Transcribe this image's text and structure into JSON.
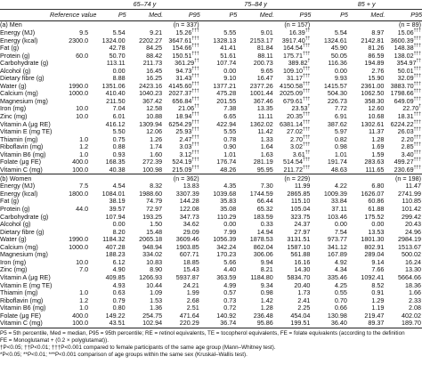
{
  "headers": {
    "groups": [
      "65–74 y",
      "75–84 y",
      "85 + y"
    ],
    "reference": "Reference value",
    "stats": [
      "P5",
      "Med.",
      "P95"
    ]
  },
  "sections": [
    {
      "title": "(a) Men",
      "n": [
        "(n = 337)",
        "(n = 157)",
        "(n = 89)"
      ],
      "rows": [
        {
          "label": "Energy (MJ)",
          "ref": "9.5",
          "v": [
            "5.54",
            "9.21",
            "15.26",
            "5.55",
            "9.01",
            "16.39",
            "5.54",
            "8.97",
            "15.06"
          ],
          "s": [
            "",
            "",
            "†††",
            "",
            "",
            "††",
            "",
            "",
            "†††"
          ]
        },
        {
          "label": "Energy (kcal)",
          "ref": "2300.0",
          "v": [
            "1324.00",
            "2202.27",
            "3647.61",
            "1328.13",
            "2153.17",
            "3917.40",
            "1324.61",
            "2142.81",
            "3600.39"
          ],
          "s": [
            "",
            "",
            "†††",
            "",
            "",
            "††",
            "",
            "",
            "†††"
          ]
        },
        {
          "label": "Fat (g)",
          "ref": "",
          "v": [
            "42.78",
            "84.25",
            "154.66",
            "41.41",
            "81.84",
            "164.54",
            "45.90",
            "81.26",
            "148.38"
          ],
          "s": [
            "",
            "",
            "†††",
            "",
            "",
            "†††",
            "",
            "",
            "†††"
          ]
        },
        {
          "label": "Protein (g)",
          "ref": "60.0",
          "v": [
            "50.70",
            "88.42",
            "150.51",
            "51.61",
            "88.11",
            "175.71",
            "50.05",
            "86.59",
            "138.02"
          ],
          "s": [
            "",
            "",
            "†††",
            "",
            "",
            "†††",
            "",
            "",
            "†††"
          ]
        },
        {
          "label": "Carbohydrate (g)",
          "ref": "",
          "v": [
            "113.11",
            "211.73",
            "361.29",
            "107.74",
            "200.73",
            "389.82",
            "116.36",
            "194.89",
            "354.97"
          ],
          "s": [
            "",
            "",
            "††",
            "",
            "",
            "†",
            "",
            "",
            "††"
          ]
        },
        {
          "label": "Alcohol (g)",
          "ref": "",
          "v": [
            "0.00",
            "16.45",
            "94.73",
            "0.00",
            "9.65",
            "109.10",
            "0.00",
            "2.76",
            "50.01"
          ],
          "s": [
            "",
            "",
            "†††",
            "",
            "",
            "†††",
            "",
            "",
            "†††"
          ]
        },
        {
          "label": "Dietary fibre (g)",
          "ref": "",
          "v": [
            "8.88",
            "16.25",
            "31.43",
            "9.10",
            "16.47",
            "31.17",
            "9.93",
            "15.90",
            "32.09"
          ],
          "s": [
            "",
            "",
            "†††",
            "",
            "",
            "†††",
            "",
            "",
            "†††"
          ]
        },
        {
          "label": "Water (g)",
          "ref": "1990.0",
          "v": [
            "1351.06",
            "2423.16",
            "4145.60",
            "1377.21",
            "2377.26",
            "4150.58",
            "1415.57",
            "2361.00",
            "3883.70"
          ],
          "s": [
            "",
            "",
            "†††",
            "",
            "",
            "†††",
            "",
            "",
            "†††"
          ]
        },
        {
          "label": "Calcium (mg)",
          "ref": "1000.0",
          "v": [
            "410.40",
            "1040.23",
            "2027.37",
            "475.28",
            "1001.44",
            "2025.09",
            "504.30",
            "1062.50",
            "1798.66"
          ],
          "s": [
            "",
            "",
            "†††",
            "",
            "",
            "†††",
            "",
            "",
            "†††"
          ]
        },
        {
          "label": "Magnesium (mg)",
          "ref": "",
          "v": [
            "211.50",
            "367.42",
            "656.84",
            "201.55",
            "367.46",
            "679.61",
            "226.73",
            "358.30",
            "649.09"
          ],
          "s": [
            "",
            "",
            "†††",
            "",
            "",
            "†††",
            "",
            "",
            "†††"
          ]
        },
        {
          "label": "Iron (mg)",
          "ref": "10.0",
          "v": [
            "7.04",
            "12.58",
            "21.06",
            "7.38",
            "13.35",
            "23.53",
            "7.72",
            "12.60",
            "22.70"
          ],
          "s": [
            "",
            "",
            "††",
            "",
            "",
            "†",
            "",
            "",
            "†"
          ]
        },
        {
          "label": "Zinc (mg)",
          "ref": "10.0",
          "v": [
            "6.01",
            "10.88",
            "18.94",
            "6.65",
            "11.11",
            "20.35",
            "6.91",
            "10.68",
            "18.31"
          ],
          "s": [
            "",
            "",
            "†††",
            "",
            "",
            "†††",
            "",
            "",
            "†††"
          ]
        },
        {
          "label": "Vitamin A (μg RE)",
          "ref": "",
          "v": [
            "416.12",
            "1309.94",
            "6254.29",
            "422.94",
            "1362.02",
            "6381.14",
            "387.62",
            "1302.61",
            "6224.22"
          ],
          "s": [
            "",
            "",
            "†††",
            "",
            "",
            "†††",
            "",
            "",
            "†††"
          ]
        },
        {
          "label": "Vitamin E (mg TE)",
          "ref": "",
          "v": [
            "5.50",
            "12.06",
            "25.93",
            "5.55",
            "11.42",
            "27.02",
            "5.97",
            "11.37",
            "26.03"
          ],
          "s": [
            "",
            "",
            "†††",
            "",
            "",
            "†††",
            "",
            "",
            "†††"
          ]
        },
        {
          "label": "Thiamin (mg)",
          "ref": "1.0",
          "v": [
            "0.75",
            "1.26",
            "2.47",
            "0.78",
            "1.33",
            "2.70",
            "0.82",
            "1.28",
            "2.20"
          ],
          "s": [
            "",
            "",
            "†††",
            "",
            "",
            "†††",
            "",
            "",
            "†††"
          ]
        },
        {
          "label": "Riboflavin (mg)",
          "ref": "1.2",
          "v": [
            "0.88",
            "1.74",
            "3.03",
            "0.90",
            "1.64",
            "3.02",
            "0.98",
            "1.69",
            "2.85"
          ],
          "s": [
            "",
            "",
            "†††",
            "",
            "",
            "†††",
            "",
            "",
            "†††"
          ]
        },
        {
          "label": "Vitamin B6 (mg)",
          "ref": "1.0",
          "v": [
            "0.93",
            "1.60",
            "3.12",
            "1.01",
            "1.63",
            "3.61",
            "1.01",
            "1.59",
            "3.40"
          ],
          "s": [
            "",
            "",
            "†††",
            "",
            "",
            "††",
            "",
            "",
            "†††"
          ]
        },
        {
          "label": "Folate (μg FE)",
          "ref": "400.0",
          "v": [
            "168.35",
            "272.39",
            "524.19",
            "176.74",
            "281.19",
            "514.54",
            "191.74",
            "283.63",
            "499.27"
          ],
          "s": [
            "",
            "",
            "†††",
            "",
            "",
            "†††",
            "",
            "",
            "†††"
          ]
        },
        {
          "label": "Vitamin C (mg)",
          "ref": "100.0",
          "v": [
            "40.38",
            "100.98",
            "215.09",
            "48.26",
            "95.95",
            "211.72",
            "48.63",
            "111.65",
            "230.69"
          ],
          "s": [
            "",
            "",
            "†††",
            "",
            "",
            "†††",
            "",
            "",
            "†††"
          ]
        }
      ]
    },
    {
      "title": "(b) Women",
      "n": [
        "(n = 362)",
        "(n = 229)",
        "(n = 198)"
      ],
      "rows": [
        {
          "label": "Energy (MJ)",
          "ref": "7.5",
          "v": [
            "4.54",
            "8.32",
            "13.83",
            "4.35",
            "7.30",
            "11.99",
            "4.22",
            "6.80",
            "11.47"
          ],
          "s": [
            "",
            "",
            "",
            "",
            "",
            "",
            "",
            "",
            ""
          ]
        },
        {
          "label": "Energy (kcal)",
          "ref": "1800.0",
          "v": [
            "1084.01",
            "1988.60",
            "3307.39",
            "1039.68",
            "1744.59",
            "2865.85",
            "1009.39",
            "1626.07",
            "2741.99"
          ],
          "s": [
            "",
            "",
            "",
            "",
            "",
            "",
            "",
            "",
            ""
          ]
        },
        {
          "label": "Fat (g)",
          "ref": "",
          "v": [
            "38.19",
            "74.79",
            "144.28",
            "35.83",
            "66.44",
            "115.10",
            "33.84",
            "60.86",
            "110.85"
          ],
          "s": [
            "",
            "",
            "",
            "",
            "",
            "",
            "",
            "",
            ""
          ]
        },
        {
          "label": "Protein (g)",
          "ref": "44.0",
          "v": [
            "39.57",
            "72.97",
            "122.08",
            "35.08",
            "65.32",
            "105.04",
            "37.11",
            "61.88",
            "101.42"
          ],
          "s": [
            "",
            "",
            "",
            "",
            "",
            "",
            "",
            "",
            ""
          ]
        },
        {
          "label": "Carbohydrate (g)",
          "ref": "",
          "v": [
            "107.94",
            "193.25",
            "347.73",
            "110.29",
            "183.59",
            "323.75",
            "103.46",
            "175.52",
            "299.42"
          ],
          "s": [
            "",
            "",
            "",
            "",
            "",
            "",
            "",
            "",
            ""
          ]
        },
        {
          "label": "Alcohol (g)",
          "ref": "",
          "v": [
            "0.00",
            "1.50",
            "34.62",
            "0.00",
            "0.33",
            "24.37",
            "0.00",
            "0.00",
            "20.43"
          ],
          "s": [
            "",
            "",
            "",
            "",
            "",
            "",
            "",
            "",
            ""
          ]
        },
        {
          "label": "Dietary fibre (g)",
          "ref": "",
          "v": [
            "8.20",
            "15.48",
            "29.09",
            "7.99",
            "14.94",
            "27.97",
            "7.54",
            "13.53",
            "24.96"
          ],
          "s": [
            "",
            "",
            "",
            "",
            "",
            "",
            "",
            "",
            ""
          ]
        },
        {
          "label": "Water (g)",
          "ref": "1990.0",
          "v": [
            "1184.32",
            "2065.18",
            "3609.46",
            "1056.39",
            "1878.53",
            "3131.51",
            "973.77",
            "1801.30",
            "2984.19"
          ],
          "s": [
            "",
            "",
            "",
            "",
            "",
            "",
            "",
            "",
            ""
          ]
        },
        {
          "label": "Calcium (mg)",
          "ref": "1000.0",
          "v": [
            "407.28",
            "948.94",
            "1903.85",
            "342.24",
            "862.04",
            "1587.10",
            "341.12",
            "802.91",
            "1513.67"
          ],
          "s": [
            "",
            "",
            "",
            "",
            "",
            "",
            "",
            "",
            ""
          ]
        },
        {
          "label": "Magnesium (mg)",
          "ref": "",
          "v": [
            "188.23",
            "334.02",
            "607.71",
            "170.23",
            "306.06",
            "561.88",
            "167.89",
            "289.04",
            "500.02"
          ],
          "s": [
            "",
            "",
            "",
            "",
            "",
            "",
            "",
            "",
            ""
          ]
        },
        {
          "label": "Iron (mg)",
          "ref": "10.0",
          "v": [
            "6.12",
            "10.83",
            "18.85",
            "5.66",
            "9.94",
            "16.16",
            "4.92",
            "9.14",
            "16.24"
          ],
          "s": [
            "",
            "",
            "",
            "",
            "",
            "",
            "",
            "",
            ""
          ]
        },
        {
          "label": "Zinc (mg)",
          "ref": "7.0",
          "v": [
            "4.90",
            "8.90",
            "15.43",
            "4.40",
            "8.21",
            "14.30",
            "4.34",
            "7.66",
            "13.30"
          ],
          "s": [
            "",
            "",
            "",
            "",
            "",
            "",
            "",
            "",
            ""
          ]
        },
        {
          "label": "Vitamin A (μg RE)",
          "ref": "",
          "v": [
            "409.85",
            "1266.93",
            "5937.87",
            "363.59",
            "1184.80",
            "5834.70",
            "335.46",
            "1092.41",
            "5664.66"
          ],
          "s": [
            "",
            "",
            "",
            "",
            "",
            "",
            "",
            "",
            ""
          ]
        },
        {
          "label": "Vitamin E (mg TE)",
          "ref": "",
          "v": [
            "4.93",
            "10.44",
            "24.21",
            "4.99",
            "9.34",
            "20.40",
            "4.25",
            "8.52",
            "18.36"
          ],
          "s": [
            "",
            "",
            "",
            "",
            "",
            "",
            "",
            "",
            ""
          ]
        },
        {
          "label": "Thiamin (mg)",
          "ref": "1.0",
          "v": [
            "0.63",
            "1.09",
            "1.99",
            "0.57",
            "0.98",
            "1.73",
            "0.55",
            "0.91",
            "1.66"
          ],
          "s": [
            "",
            "",
            "",
            "",
            "",
            "",
            "",
            "",
            ""
          ]
        },
        {
          "label": "Riboflavin (mg)",
          "ref": "1.2",
          "v": [
            "0.79",
            "1.53",
            "2.68",
            "0.73",
            "1.42",
            "2.41",
            "0.70",
            "1.29",
            "2.33"
          ],
          "s": [
            "",
            "",
            "",
            "",
            "",
            "",
            "",
            "",
            ""
          ]
        },
        {
          "label": "Vitamin B6 (mg)",
          "ref": "1.0",
          "v": [
            "0.80",
            "1.36",
            "2.51",
            "0.72",
            "1.28",
            "2.25",
            "0.66",
            "1.19",
            "2.08"
          ],
          "s": [
            "",
            "",
            "",
            "",
            "",
            "",
            "",
            "",
            ""
          ]
        },
        {
          "label": "Folate (μg FE)",
          "ref": "400.0",
          "v": [
            "149.22",
            "254.75",
            "471.64",
            "140.92",
            "236.48",
            "454.04",
            "130.98",
            "219.47",
            "402.02"
          ],
          "s": [
            "",
            "",
            "",
            "",
            "",
            "",
            "",
            "",
            ""
          ]
        },
        {
          "label": "Vitamin C (mg)",
          "ref": "100.0",
          "v": [
            "43.51",
            "102.94",
            "220.29",
            "36.74",
            "95.86",
            "199.51",
            "36.40",
            "89.37",
            "189.70"
          ],
          "s": [
            "",
            "",
            "",
            "",
            "",
            "",
            "",
            "",
            ""
          ]
        }
      ]
    }
  ],
  "footnote": [
    "P5 = 5th percentile, Med = median, P95 = 95th percentile; RE = retinol equivalents, TE = tocopherol equivalents, FE = folate equivalents (according to the definition",
    "FE = Monoglutamat + (0.2 × polyglutamat)).",
    "†P<0.05; ††P<0.01; †††P<0.001 compared to female participants of the same age group (Mann–Whitney test).",
    "*P<0.05; **P<0.01; ***P<0.001 comparison of age groups within the same sex (Kruskal–Wallis test)."
  ]
}
